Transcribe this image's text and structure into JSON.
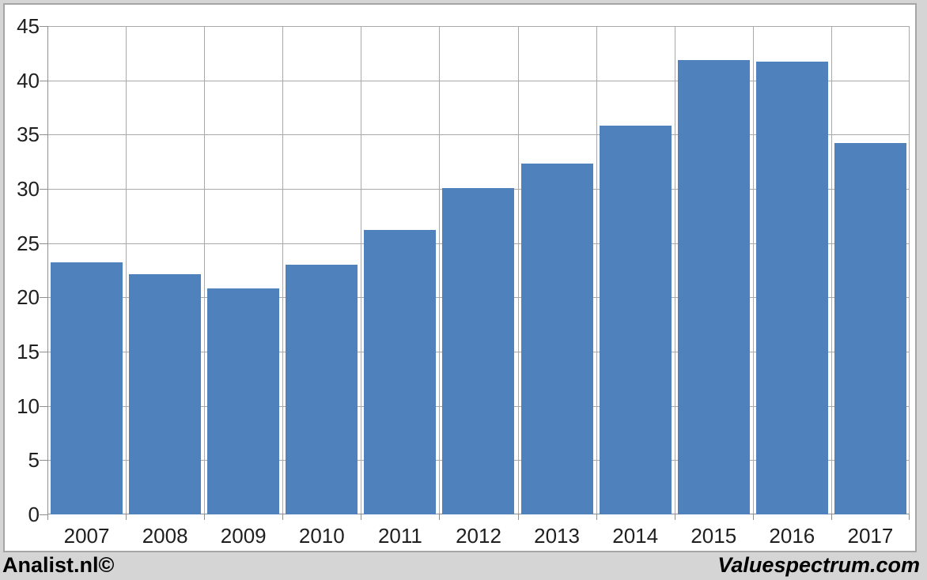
{
  "page": {
    "background_color": "#d5d5d5",
    "chart_background": "#ffffff",
    "chart_border_color": "#a6a6a6"
  },
  "footer": {
    "left_text": "Analist.nl©",
    "right_text": "Valuespectrum.com"
  },
  "chart_data": {
    "type": "bar",
    "title": "",
    "xlabel": "",
    "ylabel": "",
    "categories": [
      "2007",
      "2008",
      "2009",
      "2010",
      "2011",
      "2012",
      "2013",
      "2014",
      "2015",
      "2016",
      "2017"
    ],
    "values": [
      23.2,
      22.1,
      20.8,
      23.0,
      26.2,
      30.1,
      32.3,
      35.8,
      41.9,
      41.7,
      34.2
    ],
    "ylim": [
      0,
      45
    ],
    "yticks": [
      0,
      5,
      10,
      15,
      20,
      25,
      30,
      35,
      40,
      45
    ],
    "grid": true,
    "vertical_grid": true,
    "legend": "none",
    "bar_color": "#4f81bd",
    "gridline_color": "#a9a9a9",
    "axis_color": "#8f8f8f",
    "label_color": "#1f1f1f"
  }
}
